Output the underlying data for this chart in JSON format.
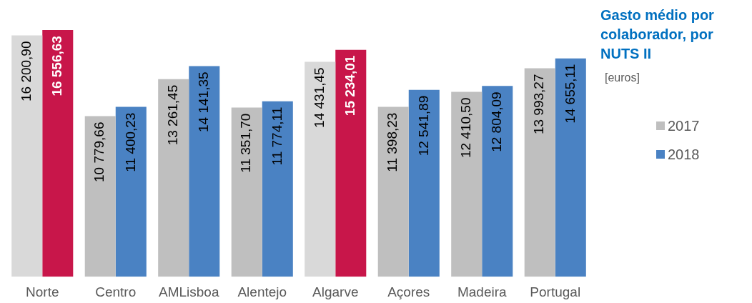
{
  "chart_data": {
    "type": "bar",
    "title": "Gasto médio por colaborador, por NUTS II",
    "subtitle": "[euros]",
    "categories": [
      "Norte",
      "Centro",
      "AMLisboa",
      "Alentejo",
      "Algarve",
      "Açores",
      "Madeira",
      "Portugal"
    ],
    "series": [
      {
        "name": "2017",
        "color": "#bfbfbf",
        "colors": [
          "#d9d9d9",
          "#bfbfbf",
          "#bfbfbf",
          "#bfbfbf",
          "#d9d9d9",
          "#bfbfbf",
          "#bfbfbf",
          "#bfbfbf"
        ],
        "values": [
          16200.9,
          10779.66,
          13261.45,
          11351.7,
          14431.45,
          11398.23,
          12410.5,
          13993.27
        ],
        "value_labels": [
          "16 200,90",
          "10 779,66",
          "13 261,45",
          "11 351,70",
          "14 431,45",
          "11 398,23",
          "12 410,50",
          "13 993,27"
        ]
      },
      {
        "name": "2018",
        "color": "#4a82c3",
        "colors": [
          "#c8164a",
          "#4a82c3",
          "#4a82c3",
          "#4a82c3",
          "#c8164a",
          "#4a82c3",
          "#4a82c3",
          "#4a82c3"
        ],
        "values": [
          16556.63,
          11400.23,
          14141.35,
          11774.11,
          15234.01,
          12541.89,
          12804.09,
          14655.11
        ],
        "value_labels": [
          "16 556,63",
          "11 400,23",
          "14 141,35",
          "11 774,11",
          "15 234,01",
          "12 541,89",
          "12 804,09",
          "14 655,11"
        ]
      }
    ],
    "legend": "right"
  }
}
